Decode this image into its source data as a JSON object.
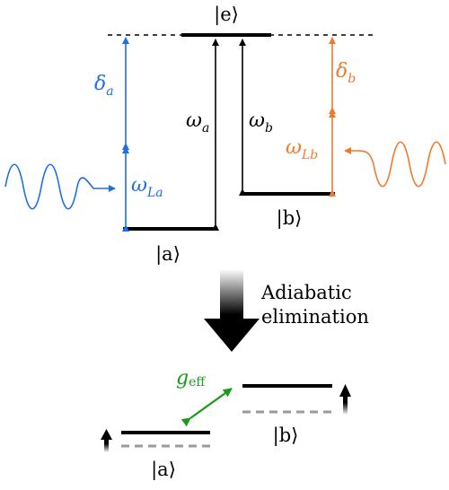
{
  "colors": {
    "black": "#000000",
    "blue": "#1f6fe0",
    "orange": "#f07a2c",
    "green": "#1a9a1a",
    "gray": "#9a9a9a"
  },
  "labels": {
    "state_e": "|e⟩",
    "state_a": "|a⟩",
    "state_b": "|b⟩",
    "state_a_bottom": "|a⟩",
    "state_b_bottom": "|b⟩",
    "delta_a": "δ",
    "delta_a_sub": "a",
    "omega_La": "ω",
    "omega_La_sub": "La",
    "omega_a": "ω",
    "omega_a_sub": "a",
    "omega_b": "ω",
    "omega_b_sub": "b",
    "delta_b": "δ",
    "delta_b_sub": "b",
    "omega_Lb": "ω",
    "omega_Lb_sub": "Lb",
    "g": "g",
    "g_sub": "eff",
    "adiabatic_line1": "Adiabatic",
    "adiabatic_line2": "elimination"
  }
}
